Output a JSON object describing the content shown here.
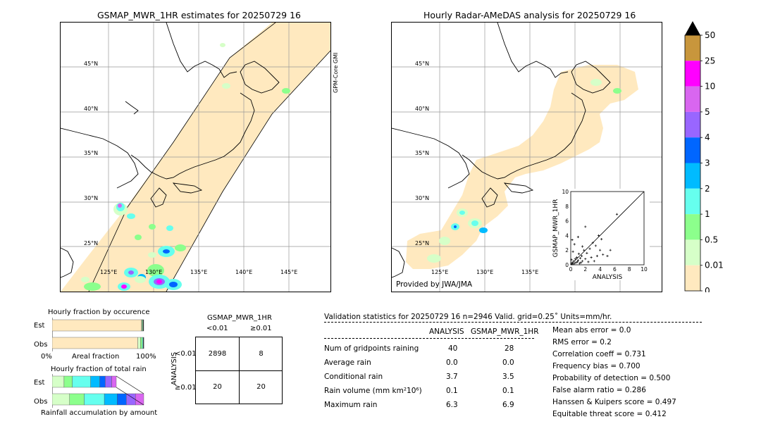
{
  "left_panel": {
    "title": "GSMAP_MWR_1HR estimates for 20250729 16",
    "satellite_label": "GPM-Core GMI",
    "lat_labels": [
      "45°N",
      "40°N",
      "35°N",
      "30°N",
      "25°N"
    ],
    "lon_labels": [
      "125°E",
      "130°E",
      "135°E",
      "140°E",
      "145°E"
    ]
  },
  "right_panel": {
    "title": "Hourly Radar-AMeDAS analysis for 20250729 16",
    "credit": "Provided by JWA/JMA",
    "lat_labels": [
      "45°N",
      "40°N",
      "35°N",
      "30°N",
      "25°N"
    ],
    "lon_labels": [
      "125°E",
      "130°E",
      "135°E"
    ]
  },
  "colorbar": {
    "labels": [
      "50",
      "25",
      "10",
      "5",
      "4",
      "3",
      "2",
      "1",
      "0.5",
      "0.01",
      "0"
    ],
    "colors": [
      "#c8963c",
      "#ff00ff",
      "#d966f0",
      "#9966ff",
      "#0066ff",
      "#00bbff",
      "#66ffee",
      "#8cff8c",
      "#d6ffc8",
      "#ffe9bf"
    ],
    "extend_color": "#000000"
  },
  "chart_data": [
    {
      "type": "scatter",
      "title": "",
      "xlabel": "ANALYSIS",
      "ylabel": "GSMAP_MWR_1HR",
      "xlim": [
        0,
        10
      ],
      "ylim": [
        0,
        10
      ],
      "x_ticks": [
        "0",
        "2",
        "4",
        "6",
        "8",
        "10"
      ],
      "y_ticks": [
        "0",
        "2",
        "4",
        "6",
        "8",
        "10"
      ],
      "points": [
        [
          0.1,
          0.1
        ],
        [
          0.2,
          0.3
        ],
        [
          0.3,
          0.1
        ],
        [
          0.4,
          0.5
        ],
        [
          0.5,
          0.2
        ],
        [
          0.6,
          0.8
        ],
        [
          0.7,
          0.3
        ],
        [
          0.8,
          1.0
        ],
        [
          0.9,
          0.4
        ],
        [
          1.0,
          0.6
        ],
        [
          1.1,
          1.5
        ],
        [
          1.2,
          0.2
        ],
        [
          1.3,
          0.9
        ],
        [
          1.4,
          0.3
        ],
        [
          1.5,
          1.2
        ],
        [
          1.6,
          0.5
        ],
        [
          1.8,
          2.0
        ],
        [
          2.0,
          0.8
        ],
        [
          2.2,
          1.6
        ],
        [
          2.4,
          0.4
        ],
        [
          2.6,
          2.2
        ],
        [
          2.8,
          1.0
        ],
        [
          3.0,
          3.0
        ],
        [
          3.2,
          0.5
        ],
        [
          3.4,
          2.6
        ],
        [
          3.6,
          1.2
        ],
        [
          3.8,
          4.0
        ],
        [
          4.0,
          2.0
        ],
        [
          4.2,
          3.5
        ],
        [
          4.4,
          1.4
        ],
        [
          5.0,
          1.2
        ],
        [
          5.4,
          2.0
        ],
        [
          6.3,
          6.9
        ],
        [
          0.2,
          3.4
        ],
        [
          0.5,
          2.8
        ],
        [
          1.0,
          3.8
        ],
        [
          1.6,
          2.5
        ],
        [
          2.0,
          5.2
        ],
        [
          0.3,
          1.8
        ],
        [
          0.1,
          0.7
        ]
      ]
    },
    {
      "type": "bar",
      "title": "Hourly fraction by occurence",
      "categories": [
        "Est",
        "Obs"
      ],
      "xlabel": "Areal fraction",
      "x_ticks": [
        "0%",
        "100%"
      ],
      "series": [
        {
          "colors": [
            "#ffe9bf",
            "#d6ffc8",
            "#8cff8c",
            "#66ffee",
            "#000000"
          ],
          "Est": [
            0.975,
            0.006,
            0.008,
            0.004,
            0.007
          ],
          "Obs": [
            0.935,
            0.03,
            0.02,
            0.01,
            0.005
          ]
        }
      ]
    },
    {
      "type": "bar",
      "title": "Hourly fraction of total rain",
      "categories": [
        "Est",
        "Obs"
      ],
      "xlabel": "Rainfall accumulation by amount",
      "series": [
        {
          "colors": [
            "#d6ffc8",
            "#8cff8c",
            "#66ffee",
            "#00bbff",
            "#0066ff",
            "#9966ff",
            "#d966f0"
          ],
          "Est": [
            0.13,
            0.09,
            0.2,
            0.1,
            0.06,
            0.07,
            0.05
          ],
          "Obs": [
            0.19,
            0.16,
            0.22,
            0.14,
            0.1,
            0.1,
            0.09
          ]
        }
      ]
    },
    {
      "type": "table",
      "title": "GSMAP_MWR_1HR",
      "col_headers": [
        "<0.01",
        "≥0.01"
      ],
      "row_label": "ANALYSIS",
      "row_headers": [
        "<0.01",
        "≥0.01"
      ],
      "cells": [
        [
          "2898",
          "8"
        ],
        [
          "20",
          "20"
        ]
      ]
    }
  ],
  "validation": {
    "header": "Validation statistics for 20250729 16  n=2946 Valid. grid=0.25˚ Units=mm/hr.",
    "col_analysis": "ANALYSIS",
    "col_gsmap": "GSMAP_MWR_1HR",
    "rows": [
      {
        "label": "Num of gridpoints raining",
        "analysis": "40",
        "gsmap": "28"
      },
      {
        "label": "Average rain",
        "analysis": "0.0",
        "gsmap": "0.0"
      },
      {
        "label": "Conditional rain",
        "analysis": "3.7",
        "gsmap": "3.5"
      },
      {
        "label": "Rain volume (mm km²10⁶)",
        "analysis": "0.1",
        "gsmap": "0.1"
      },
      {
        "label": "Maximum rain",
        "analysis": "6.3",
        "gsmap": "6.9"
      }
    ],
    "scores": [
      "Mean abs error =    0.0",
      "RMS error =    0.2",
      "Correlation coeff =  0.731",
      "Frequency bias =  0.700",
      "Probability of detection =  0.500",
      "False alarm ratio =  0.286",
      "Hanssen & Kuipers score =  0.497",
      "Equitable threat score =  0.412"
    ]
  }
}
